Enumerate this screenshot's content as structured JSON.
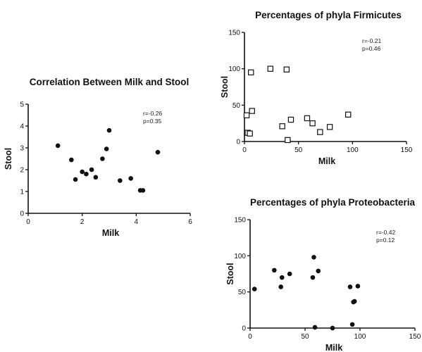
{
  "chart_data": [
    {
      "id": "milk-stool",
      "type": "scatter",
      "title": "Correlation Between Milk and Stool",
      "xlabel": "Milk",
      "ylabel": "Stool",
      "xlim": [
        0,
        6
      ],
      "ylim": [
        0,
        5
      ],
      "xticks": [
        0,
        2,
        4,
        6
      ],
      "yticks": [
        0,
        1,
        2,
        3,
        4,
        5
      ],
      "marker": "filled-circle",
      "grid": false,
      "annotations": [
        "r=-0.26",
        "p=0.35"
      ],
      "points": [
        {
          "x": 1.1,
          "y": 3.1
        },
        {
          "x": 1.6,
          "y": 2.45
        },
        {
          "x": 1.75,
          "y": 1.55
        },
        {
          "x": 2.0,
          "y": 1.9
        },
        {
          "x": 2.15,
          "y": 1.8
        },
        {
          "x": 2.35,
          "y": 2.0
        },
        {
          "x": 2.5,
          "y": 1.65
        },
        {
          "x": 2.75,
          "y": 2.5
        },
        {
          "x": 2.9,
          "y": 2.95
        },
        {
          "x": 3.0,
          "y": 3.8
        },
        {
          "x": 3.4,
          "y": 1.5
        },
        {
          "x": 3.8,
          "y": 1.6
        },
        {
          "x": 4.15,
          "y": 1.05
        },
        {
          "x": 4.25,
          "y": 1.05
        },
        {
          "x": 4.8,
          "y": 2.8
        }
      ]
    },
    {
      "id": "firmicutes",
      "type": "scatter",
      "title": "Percentages of phyla Firmicutes",
      "xlabel": "Milk",
      "ylabel": "Stool",
      "xlim": [
        0,
        150
      ],
      "ylim": [
        0,
        150
      ],
      "xticks": [
        0,
        50,
        100,
        150
      ],
      "yticks": [
        0,
        50,
        100,
        150
      ],
      "marker": "open-square",
      "grid": false,
      "annotations": [
        "r=-0.21",
        "p=0.46"
      ],
      "points": [
        {
          "x": 2,
          "y": 36
        },
        {
          "x": 3,
          "y": 12
        },
        {
          "x": 5,
          "y": 11
        },
        {
          "x": 6,
          "y": 95
        },
        {
          "x": 7,
          "y": 42
        },
        {
          "x": 24,
          "y": 100
        },
        {
          "x": 35,
          "y": 21
        },
        {
          "x": 39,
          "y": 99
        },
        {
          "x": 40,
          "y": 2
        },
        {
          "x": 43,
          "y": 30
        },
        {
          "x": 58,
          "y": 32
        },
        {
          "x": 63,
          "y": 25
        },
        {
          "x": 70,
          "y": 13
        },
        {
          "x": 79,
          "y": 20
        },
        {
          "x": 96,
          "y": 37
        }
      ]
    },
    {
      "id": "proteobacteria",
      "type": "scatter",
      "title": "Percentages of phyla Proteobacteria",
      "xlabel": "Milk",
      "ylabel": "Stool",
      "xlim": [
        0,
        150
      ],
      "ylim": [
        0,
        150
      ],
      "xticks": [
        0,
        50,
        100,
        150
      ],
      "yticks": [
        0,
        50,
        100,
        150
      ],
      "marker": "filled-circle",
      "grid": false,
      "annotations": [
        "r=-0.42",
        "p=0.12"
      ],
      "points": [
        {
          "x": 4,
          "y": 54
        },
        {
          "x": 22,
          "y": 80
        },
        {
          "x": 28,
          "y": 57
        },
        {
          "x": 29,
          "y": 70
        },
        {
          "x": 36,
          "y": 75
        },
        {
          "x": 57,
          "y": 70
        },
        {
          "x": 58,
          "y": 98
        },
        {
          "x": 59,
          "y": 1
        },
        {
          "x": 62,
          "y": 79
        },
        {
          "x": 75,
          "y": 0
        },
        {
          "x": 91,
          "y": 57
        },
        {
          "x": 93,
          "y": 5
        },
        {
          "x": 94,
          "y": 36
        },
        {
          "x": 95,
          "y": 37
        },
        {
          "x": 98,
          "y": 58
        }
      ]
    }
  ]
}
